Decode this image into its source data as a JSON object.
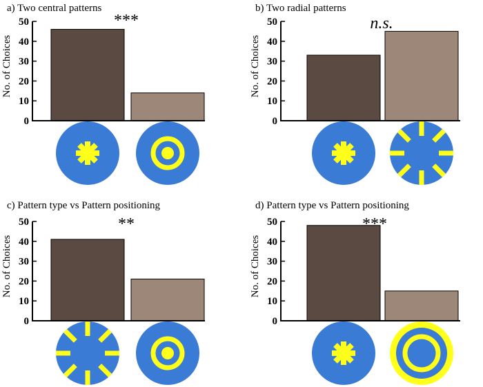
{
  "colors": {
    "dark_bar": "#5a4a41",
    "light_bar": "#9c8778",
    "pattern_bg": "#3a7bd5",
    "pattern_fg": "#ffff1a"
  },
  "chart_data": [
    {
      "type": "bar",
      "title": "a) Two central patterns",
      "ylabel": "No. of Choices",
      "ylim": [
        0,
        50
      ],
      "yticks": [
        "0",
        "10",
        "20",
        "30",
        "40",
        "50"
      ],
      "categories": [
        "central-star",
        "central-dot-ring"
      ],
      "values": [
        46,
        14
      ],
      "significance": "***",
      "pattern_icons": [
        "star-pattern-icon",
        "dot-ring-pattern-icon"
      ]
    },
    {
      "type": "bar",
      "title": "b) Two radial patterns",
      "ylabel": "No. of Choices",
      "ylim": [
        0,
        50
      ],
      "yticks": [
        "0",
        "10",
        "20",
        "30",
        "40",
        "50"
      ],
      "categories": [
        "central-star",
        "radial-spokes"
      ],
      "values": [
        33,
        45
      ],
      "significance": "n.s.",
      "pattern_icons": [
        "star-pattern-icon",
        "radial-spokes-pattern-icon"
      ]
    },
    {
      "type": "bar",
      "title": "c) Pattern type vs Pattern positioning",
      "ylabel": "No. of Choices",
      "ylim": [
        0,
        50
      ],
      "yticks": [
        "0",
        "10",
        "20",
        "30",
        "40",
        "50"
      ],
      "categories": [
        "radial-spokes",
        "central-dot-ring"
      ],
      "values": [
        41,
        21
      ],
      "significance": "**",
      "pattern_icons": [
        "radial-spokes-pattern-icon",
        "dot-ring-pattern-icon"
      ]
    },
    {
      "type": "bar",
      "title": "d) Pattern type vs Pattern positioning",
      "ylabel": "No. of Choices",
      "ylim": [
        0,
        50
      ],
      "yticks": [
        "0",
        "10",
        "20",
        "30",
        "40",
        "50"
      ],
      "categories": [
        "central-star",
        "outer-rings"
      ],
      "values": [
        48,
        15
      ],
      "significance": "***",
      "pattern_icons": [
        "star-pattern-icon",
        "outer-rings-pattern-icon"
      ]
    }
  ]
}
